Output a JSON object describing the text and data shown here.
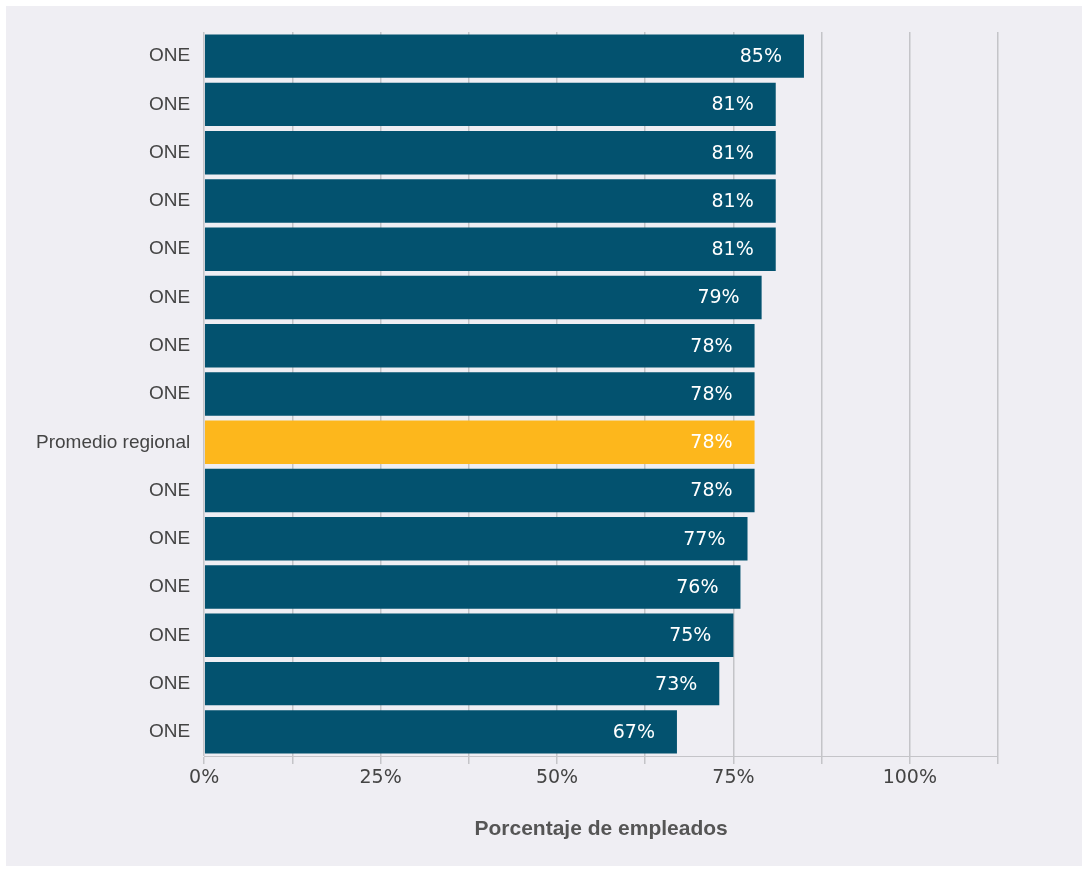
{
  "chart_data": {
    "type": "bar",
    "orientation": "horizontal",
    "xlabel": "Porcentaje de empleados",
    "categories": [
      "ONE",
      "ONE",
      "ONE",
      "ONE",
      "ONE",
      "ONE",
      "ONE",
      "ONE",
      "Promedio regional",
      "ONE",
      "ONE",
      "ONE",
      "ONE",
      "ONE",
      "ONE"
    ],
    "values": [
      85,
      81,
      81,
      81,
      81,
      79,
      78,
      78,
      78,
      78,
      77,
      76,
      75,
      73,
      67
    ],
    "colors": [
      "#03526f",
      "#03526f",
      "#03526f",
      "#03526f",
      "#03526f",
      "#03526f",
      "#03526f",
      "#03526f",
      "#fdb71c",
      "#03526f",
      "#03526f",
      "#03526f",
      "#03526f",
      "#03526f",
      "#03526f"
    ],
    "xlim": [
      0,
      112.5
    ],
    "xticks": [
      {
        "value": 0,
        "label": "0%"
      },
      {
        "value": 12.5,
        "label": null
      },
      {
        "value": 25,
        "label": "25%"
      },
      {
        "value": 37.5,
        "label": null
      },
      {
        "value": 50,
        "label": "50%"
      },
      {
        "value": 62.5,
        "label": null
      },
      {
        "value": 75,
        "label": "75%"
      },
      {
        "value": 87.5,
        "label": null
      },
      {
        "value": 100,
        "label": "100%"
      },
      {
        "value": 112.5,
        "label": null
      }
    ],
    "value_labels": [
      "85%",
      "81%",
      "81%",
      "81%",
      "81%",
      "79%",
      "78%",
      "78%",
      "78%",
      "78%",
      "77%",
      "76%",
      "75%",
      "73%",
      "67%"
    ],
    "grid": "x"
  }
}
